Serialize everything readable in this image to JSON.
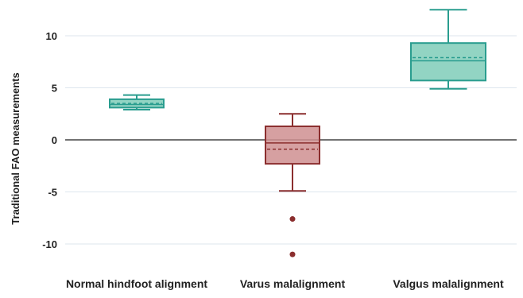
{
  "chart_data": {
    "type": "box",
    "ylabel": "Traditional FAO measurements",
    "ylim": [
      -12.5,
      13
    ],
    "yticks": [
      10,
      5,
      0,
      -5,
      -10
    ],
    "ytick_labels": [
      "10",
      "5",
      "0",
      "-5",
      "-10"
    ],
    "grid": true,
    "categories": [
      "Normal hindfoot alignment",
      "Varus malalignment",
      "Valgus malalignment"
    ],
    "boxes": [
      {
        "category": "Normal hindfoot alignment",
        "min": 2.9,
        "q1": 3.1,
        "median": 3.4,
        "mean": 3.5,
        "q3": 3.9,
        "max": 4.3,
        "outliers": [],
        "color": "#2a9d8f"
      },
      {
        "category": "Varus malalignment",
        "min": -4.9,
        "q1": -2.3,
        "median": -0.3,
        "mean": -0.9,
        "q3": 1.3,
        "max": 2.5,
        "outliers": [
          -7.6,
          -11.0
        ],
        "color": "#8b2e2e"
      },
      {
        "category": "Valgus malalignment",
        "min": 4.9,
        "q1": 5.7,
        "median": 7.6,
        "mean": 7.9,
        "q3": 9.3,
        "max": 12.5,
        "outliers": [],
        "color": "#2a9d8f"
      }
    ]
  }
}
